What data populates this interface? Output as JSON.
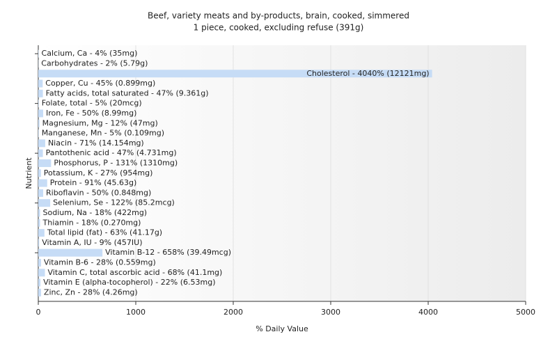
{
  "chart_data": {
    "type": "hbar",
    "title": "Beef, variety meats and by-products, brain, cooked, simmered",
    "subtitle": "1 piece, cooked, excluding refuse (391g)",
    "x_label": "% Daily Value",
    "y_label": "Nutrient",
    "values": [
      4,
      2,
      4040,
      45,
      47,
      5,
      50,
      12,
      5,
      71,
      47,
      131,
      27,
      91,
      50,
      122,
      18,
      18,
      63,
      9,
      658,
      28,
      68,
      22,
      28
    ],
    "value_labels": [
      "Calcium, Ca - 4% (35mg)",
      "Carbohydrates - 2% (5.79g)",
      "Cholesterol - 4040% (12121mg)",
      "Copper, Cu - 45% (0.899mg)",
      "Fatty acids, total saturated - 47% (9.361g)",
      "Folate, total - 5% (20mcg)",
      "Iron, Fe - 50% (8.99mg)",
      "Magnesium, Mg - 12% (47mg)",
      "Manganese, Mn - 5% (0.109mg)",
      "Niacin - 71% (14.154mg)",
      "Pantothenic acid - 47% (4.731mg)",
      "Phosphorus, P - 131% (1310mg)",
      "Potassium, K - 27% (954mg)",
      "Protein - 91% (45.63g)",
      "Riboflavin - 50% (0.848mg)",
      "Selenium, Se - 122% (85.2mcg)",
      "Sodium, Na - 18% (422mg)",
      "Thiamin - 18% (0.270mg)",
      "Total lipid (fat) - 63% (41.17g)",
      "Vitamin A, IU - 9% (457IU)",
      "Vitamin B-12 - 658% (39.49mcg)",
      "Vitamin B-6 - 28% (0.559mg)",
      "Vitamin C, total ascorbic acid - 68% (41.1mg)",
      "Vitamin E (alpha-tocopherol) - 22% (6.53mg)",
      "Zinc, Zn - 28% (4.26mg)"
    ],
    "color": "#c6dcf6",
    "xlim": [
      0,
      5000
    ],
    "xticks": [
      0,
      1000,
      2000,
      3000,
      4000,
      5000
    ],
    "grid": true
  }
}
